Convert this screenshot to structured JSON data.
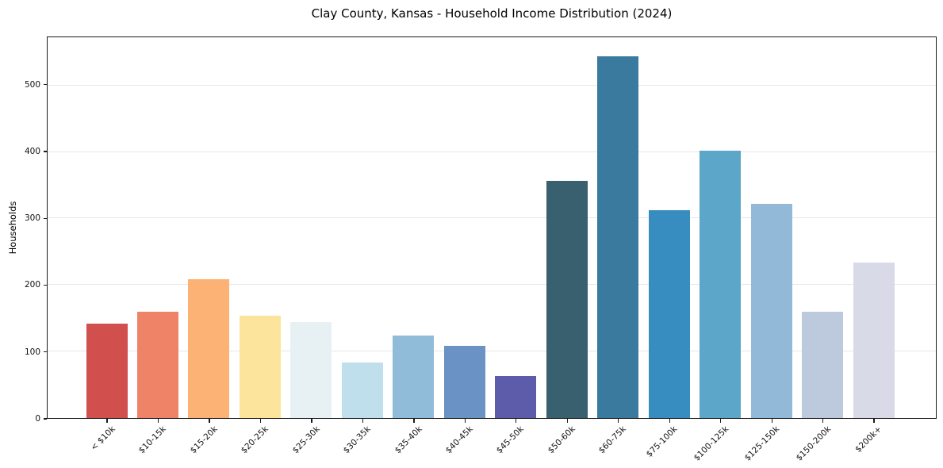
{
  "chart_data": {
    "type": "bar",
    "title": "Clay County, Kansas - Household Income Distribution (2024)",
    "xlabel": "",
    "ylabel": "Households",
    "categories": [
      "< $10k",
      "$10-15k",
      "$15-20k",
      "$20-25k",
      "$25-30k",
      "$30-35k",
      "$35-40k",
      "$40-45k",
      "$45-50k",
      "$50-60k",
      "$60-75k",
      "$75-100k",
      "$100-125k",
      "$125-150k",
      "$150-200k",
      "$200k+"
    ],
    "values": [
      142,
      160,
      209,
      154,
      145,
      84,
      124,
      109,
      63,
      357,
      545,
      313,
      402,
      322,
      160,
      234
    ],
    "bar_colors": [
      "#d1504e",
      "#ef8367",
      "#fbb274",
      "#fde49c",
      "#e7f1f4",
      "#bfdfec",
      "#90bcd9",
      "#6a92c4",
      "#5c5caa",
      "#38606f",
      "#397a9e",
      "#388dc0",
      "#5ca6c9",
      "#93b9d9",
      "#bdcade",
      "#d8dae7"
    ],
    "yticks": [
      0,
      100,
      200,
      300,
      400,
      500
    ],
    "ylim": [
      0,
      572
    ],
    "grid": "horizontal-light",
    "legend": "none",
    "background": "#ffffff",
    "spine_color": "#1a1a1a",
    "gridline_color": "#e7e7e7"
  }
}
